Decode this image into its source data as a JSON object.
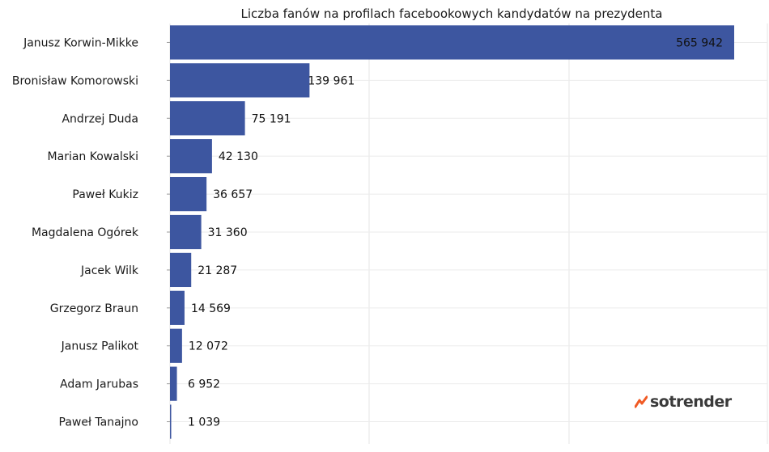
{
  "chart_data": {
    "type": "bar",
    "orientation": "horizontal",
    "title": "Liczba fanów na profilach facebookowych kandydatów na prezydenta",
    "categories": [
      "Janusz Korwin-Mikke",
      "Bronisław Komorowski",
      "Andrzej Duda",
      "Marian Kowalski",
      "Paweł Kukiz",
      "Magdalena Ogórek",
      "Jacek Wilk",
      "Grzegorz Braun",
      "Janusz Palikot",
      "Adam Jarubas",
      "Paweł Tanajno"
    ],
    "values": [
      565942,
      139961,
      75191,
      42130,
      36657,
      31360,
      21287,
      14569,
      12072,
      6952,
      1039
    ],
    "value_labels": [
      "565 942",
      "139 961",
      "75 191",
      "42 130",
      "36 657",
      "31 360",
      "21 287",
      "14 569",
      "12 072",
      "6 952",
      "1 039"
    ],
    "xlim": [
      0,
      600000
    ],
    "grid": true,
    "bar_color": "#3d56a0",
    "legend": false
  },
  "brand": {
    "name": "sotrender",
    "accent_color": "#f05a24"
  }
}
